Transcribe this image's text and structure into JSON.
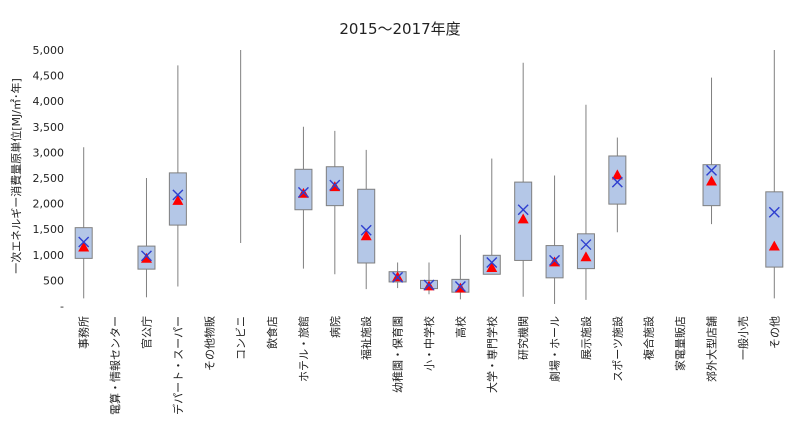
{
  "chart_data": {
    "type": "boxplot",
    "title": "2015～2017年度",
    "ylabel": "一次エネルギー消費量原単位[MJ/㎡･年]",
    "ylim": [
      0,
      5000
    ],
    "yticks": [
      0,
      500,
      1000,
      1500,
      2000,
      2500,
      3000,
      3500,
      4000,
      4500,
      5000
    ],
    "ytick_labels": [
      "-",
      "500",
      "1,000",
      "1,500",
      "2,000",
      "2,500",
      "3,000",
      "3,500",
      "4,000",
      "4,500",
      "5,000"
    ],
    "box_color": "#b4c7e7",
    "whisker_color": "#808080",
    "mean_marker_color": "#2e3fcf",
    "median_marker_color": "#ff0000",
    "categories": [
      {
        "name": "事務所",
        "min": 150,
        "q1": 930,
        "q3": 1530,
        "max": 3100,
        "mean": 1250,
        "median": 1150
      },
      {
        "name": "電算・情報センター"
      },
      {
        "name": "官公庁",
        "min": 170,
        "q1": 720,
        "q3": 1170,
        "max": 2500,
        "mean": 980,
        "median": 930
      },
      {
        "name": "デパート・スーパー",
        "min": 380,
        "q1": 1580,
        "q3": 2600,
        "max": 4700,
        "mean": 2170,
        "median": 2060
      },
      {
        "name": "その他物販"
      },
      {
        "name": "コンビニ",
        "min": 1230,
        "max": 5000
      },
      {
        "name": "飲食店"
      },
      {
        "name": "ホテル・旅館",
        "min": 730,
        "q1": 1880,
        "q3": 2670,
        "max": 3500,
        "mean": 2220,
        "median": 2200
      },
      {
        "name": "病院",
        "min": 620,
        "q1": 1960,
        "q3": 2720,
        "max": 3420,
        "mean": 2360,
        "median": 2330
      },
      {
        "name": "福祉施設",
        "min": 330,
        "q1": 840,
        "q3": 2280,
        "max": 3050,
        "mean": 1480,
        "median": 1370
      },
      {
        "name": "幼稚園・保育園",
        "min": 350,
        "q1": 470,
        "q3": 670,
        "max": 850,
        "mean": 560,
        "median": 570
      },
      {
        "name": "小・中学校",
        "min": 230,
        "q1": 340,
        "q3": 500,
        "max": 850,
        "mean": 410,
        "median": 390
      },
      {
        "name": "高校",
        "min": 130,
        "q1": 270,
        "q3": 520,
        "max": 1390,
        "mean": 380,
        "median": 350
      },
      {
        "name": "大学・専門学校",
        "min": 620,
        "q1": 620,
        "q3": 990,
        "max": 2880,
        "mean": 850,
        "median": 750
      },
      {
        "name": "研究機関",
        "min": 180,
        "q1": 890,
        "q3": 2420,
        "max": 4750,
        "mean": 1880,
        "median": 1700
      },
      {
        "name": "劇場・ホール",
        "min": 40,
        "q1": 550,
        "q3": 1180,
        "max": 2550,
        "mean": 890,
        "median": 860
      },
      {
        "name": "展示施設",
        "min": 120,
        "q1": 730,
        "q3": 1410,
        "max": 3930,
        "mean": 1200,
        "median": 960
      },
      {
        "name": "スポーツ施設",
        "min": 1440,
        "q1": 1990,
        "q3": 2930,
        "max": 3290,
        "mean": 2420,
        "median": 2560
      },
      {
        "name": "複合施設"
      },
      {
        "name": "家電量販店"
      },
      {
        "name": "郊外大型店舗",
        "min": 1600,
        "q1": 1960,
        "q3": 2760,
        "max": 4460,
        "mean": 2650,
        "median": 2440
      },
      {
        "name": "一般小売"
      },
      {
        "name": "その他",
        "min": 150,
        "q1": 760,
        "q3": 2230,
        "max": 5000,
        "mean": 1830,
        "median": 1170
      }
    ]
  }
}
